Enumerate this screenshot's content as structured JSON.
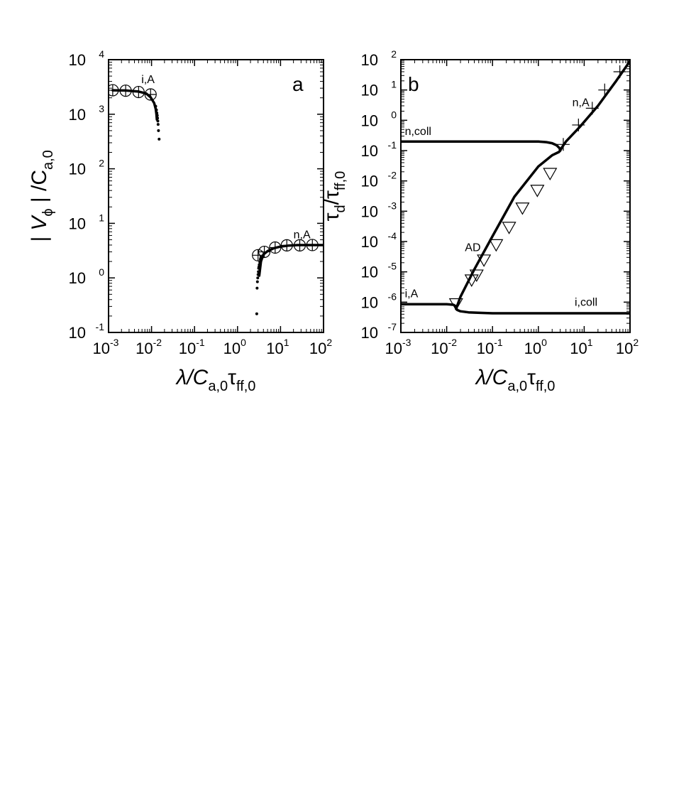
{
  "chart_data": [
    {
      "id": "a",
      "type": "line",
      "panel_label": "a",
      "xscale": "log",
      "yscale": "log",
      "xlim": [
        0.001,
        100
      ],
      "ylim": [
        0.1,
        10000
      ],
      "xticks": [
        {
          "m": "10",
          "e": "-3"
        },
        {
          "m": "10",
          "e": "-2"
        },
        {
          "m": "10",
          "e": "-1"
        },
        {
          "m": "10",
          "e": "0"
        },
        {
          "m": "10",
          "e": "1"
        },
        {
          "m": "10",
          "e": "2"
        }
      ],
      "yticks": [
        {
          "m": "10",
          "e": "-1"
        },
        {
          "m": "10",
          "e": "0"
        },
        {
          "m": "10",
          "e": "1"
        },
        {
          "m": "10",
          "e": "2"
        },
        {
          "m": "10",
          "e": "3"
        },
        {
          "m": "10",
          "e": "4"
        }
      ],
      "xlabel": {
        "main": "λ/C",
        "sub1": "a,0",
        "mid": "τ",
        "sub2": "ff,0"
      },
      "ylabel": {
        "pre": "| V",
        "sub1": "ϕ",
        "mid": " | /C",
        "sub2": "a,0"
      },
      "series": [
        {
          "style": "line",
          "x": [
            0.00125,
            0.0025,
            0.005,
            0.0075,
            0.0095,
            0.0115,
            0.0125,
            0.013,
            0.0133
          ],
          "y": [
            2750,
            2720,
            2600,
            2400,
            2050,
            1600,
            1250,
            1000,
            800
          ]
        },
        {
          "style": "dots",
          "x": [
            0.0125,
            0.013,
            0.0133,
            0.0136,
            0.0138,
            0.014,
            0.0142,
            0.0145,
            0.015
          ],
          "y": [
            1400,
            1200,
            1050,
            950,
            850,
            750,
            650,
            500,
            350
          ]
        },
        {
          "style": "circle-plus",
          "x": [
            0.00125,
            0.0025,
            0.005,
            0.0095
          ],
          "y": [
            2750,
            2700,
            2550,
            2300
          ]
        },
        {
          "style": "line",
          "x": [
            3.2,
            3.5,
            4,
            5,
            7,
            10,
            15,
            25,
            40,
            60,
            100
          ],
          "y": [
            1.1,
            2.0,
            2.7,
            3.1,
            3.5,
            3.75,
            3.9,
            4.0,
            4.0,
            4.0,
            4.0
          ]
        },
        {
          "style": "dots",
          "x": [
            2.8,
            2.85,
            2.9,
            2.95,
            3.0,
            3.05,
            3.1,
            3.15,
            3.2,
            3.3,
            3.4,
            3.5
          ],
          "y": [
            0.22,
            0.65,
            0.85,
            1.0,
            1.15,
            1.3,
            1.5,
            1.6,
            1.75,
            1.95,
            2.2,
            2.4
          ]
        },
        {
          "style": "circle-plus",
          "x": [
            3,
            4.2,
            7.5,
            14,
            28,
            55
          ],
          "y": [
            2.6,
            3.0,
            3.6,
            3.95,
            3.95,
            4.0
          ]
        }
      ],
      "annotations": [
        {
          "text": "i,A",
          "x": 0.0058,
          "y": 3700
        },
        {
          "text": "n,A",
          "x": 20,
          "y": 5.3
        }
      ]
    },
    {
      "id": "b",
      "type": "line",
      "panel_label": "b",
      "xscale": "log",
      "yscale": "log",
      "xlim": [
        0.001,
        100
      ],
      "ylim": [
        1e-07,
        100
      ],
      "xticks": [
        {
          "m": "10",
          "e": "-3"
        },
        {
          "m": "10",
          "e": "-2"
        },
        {
          "m": "10",
          "e": "-1"
        },
        {
          "m": "10",
          "e": "0"
        },
        {
          "m": "10",
          "e": "1"
        },
        {
          "m": "10",
          "e": "2"
        }
      ],
      "yticks": [
        {
          "m": "10",
          "e": "-7"
        },
        {
          "m": "10",
          "e": "-6"
        },
        {
          "m": "10",
          "e": "-5"
        },
        {
          "m": "10",
          "e": "-4"
        },
        {
          "m": "10",
          "e": "-3"
        },
        {
          "m": "10",
          "e": "-2"
        },
        {
          "m": "10",
          "e": "-1"
        },
        {
          "m": "10",
          "e": "0"
        },
        {
          "m": "10",
          "e": "1"
        },
        {
          "m": "10",
          "e": "2"
        }
      ],
      "xlabel": {
        "main": "λ/C",
        "sub1": "a,0",
        "mid": "τ",
        "sub2": "ff,0"
      },
      "ylabel": {
        "pre": "τ",
        "sub1": "d",
        "mid": "/τ",
        "sub2": "ff,0"
      },
      "series": [
        {
          "style": "line",
          "x": [
            0.001,
            0.01,
            0.1,
            0.5,
            1.0,
            1.5,
            2.0,
            2.5,
            2.9,
            3.0,
            3.1,
            3.3,
            4,
            8,
            20,
            50,
            100
          ],
          "y": [
            0.2,
            0.2,
            0.2,
            0.2,
            0.198,
            0.19,
            0.175,
            0.15,
            0.12,
            0.1,
            0.11,
            0.13,
            0.2,
            0.6,
            3,
            20,
            90
          ]
        },
        {
          "style": "line",
          "x": [
            0.001,
            0.005,
            0.01,
            0.014,
            0.0155,
            0.016,
            0.0165,
            0.017,
            0.02,
            0.03,
            0.06,
            0.1,
            1,
            10,
            100
          ],
          "y": [
            8.5e-07,
            8.5e-07,
            8.5e-07,
            8.2e-07,
            7.5e-07,
            6.8e-07,
            6e-07,
            5.5e-07,
            5e-07,
            4.6e-07,
            4.4e-07,
            4.3e-07,
            4.3e-07,
            4.3e-07,
            4.3e-07
          ]
        },
        {
          "style": "line",
          "x": [
            0.016,
            0.02,
            0.04,
            0.1,
            0.3,
            1,
            2,
            2.8,
            3.0
          ],
          "y": [
            6e-07,
            1.5e-06,
            1.2e-05,
            0.00015,
            0.003,
            0.03,
            0.07,
            0.09,
            0.1
          ]
        },
        {
          "style": "triangle",
          "x": [
            0.016,
            0.035,
            0.045,
            0.065,
            0.12,
            0.23,
            0.45,
            0.95,
            1.8
          ],
          "y": [
            9e-07,
            5.5e-06,
            8e-06,
            2.5e-05,
            8e-05,
            0.0003,
            0.0013,
            0.005,
            0.018
          ]
        },
        {
          "style": "plus",
          "x": [
            3.5,
            7.5,
            15,
            28,
            60
          ],
          "y": [
            0.16,
            0.7,
            2.5,
            10,
            40
          ]
        }
      ],
      "annotations": [
        {
          "text": "n,coll",
          "x": 0.00122,
          "y": 0.33
        },
        {
          "text": "i,A",
          "x": 0.00122,
          "y": 1.45e-06
        },
        {
          "text": "i,coll",
          "x": 6.2,
          "y": 7.6e-07
        },
        {
          "text": "AD",
          "x": 0.025,
          "y": 4.8e-05
        },
        {
          "text": "n,A",
          "x": 5.5,
          "y": 2.9
        }
      ]
    }
  ]
}
